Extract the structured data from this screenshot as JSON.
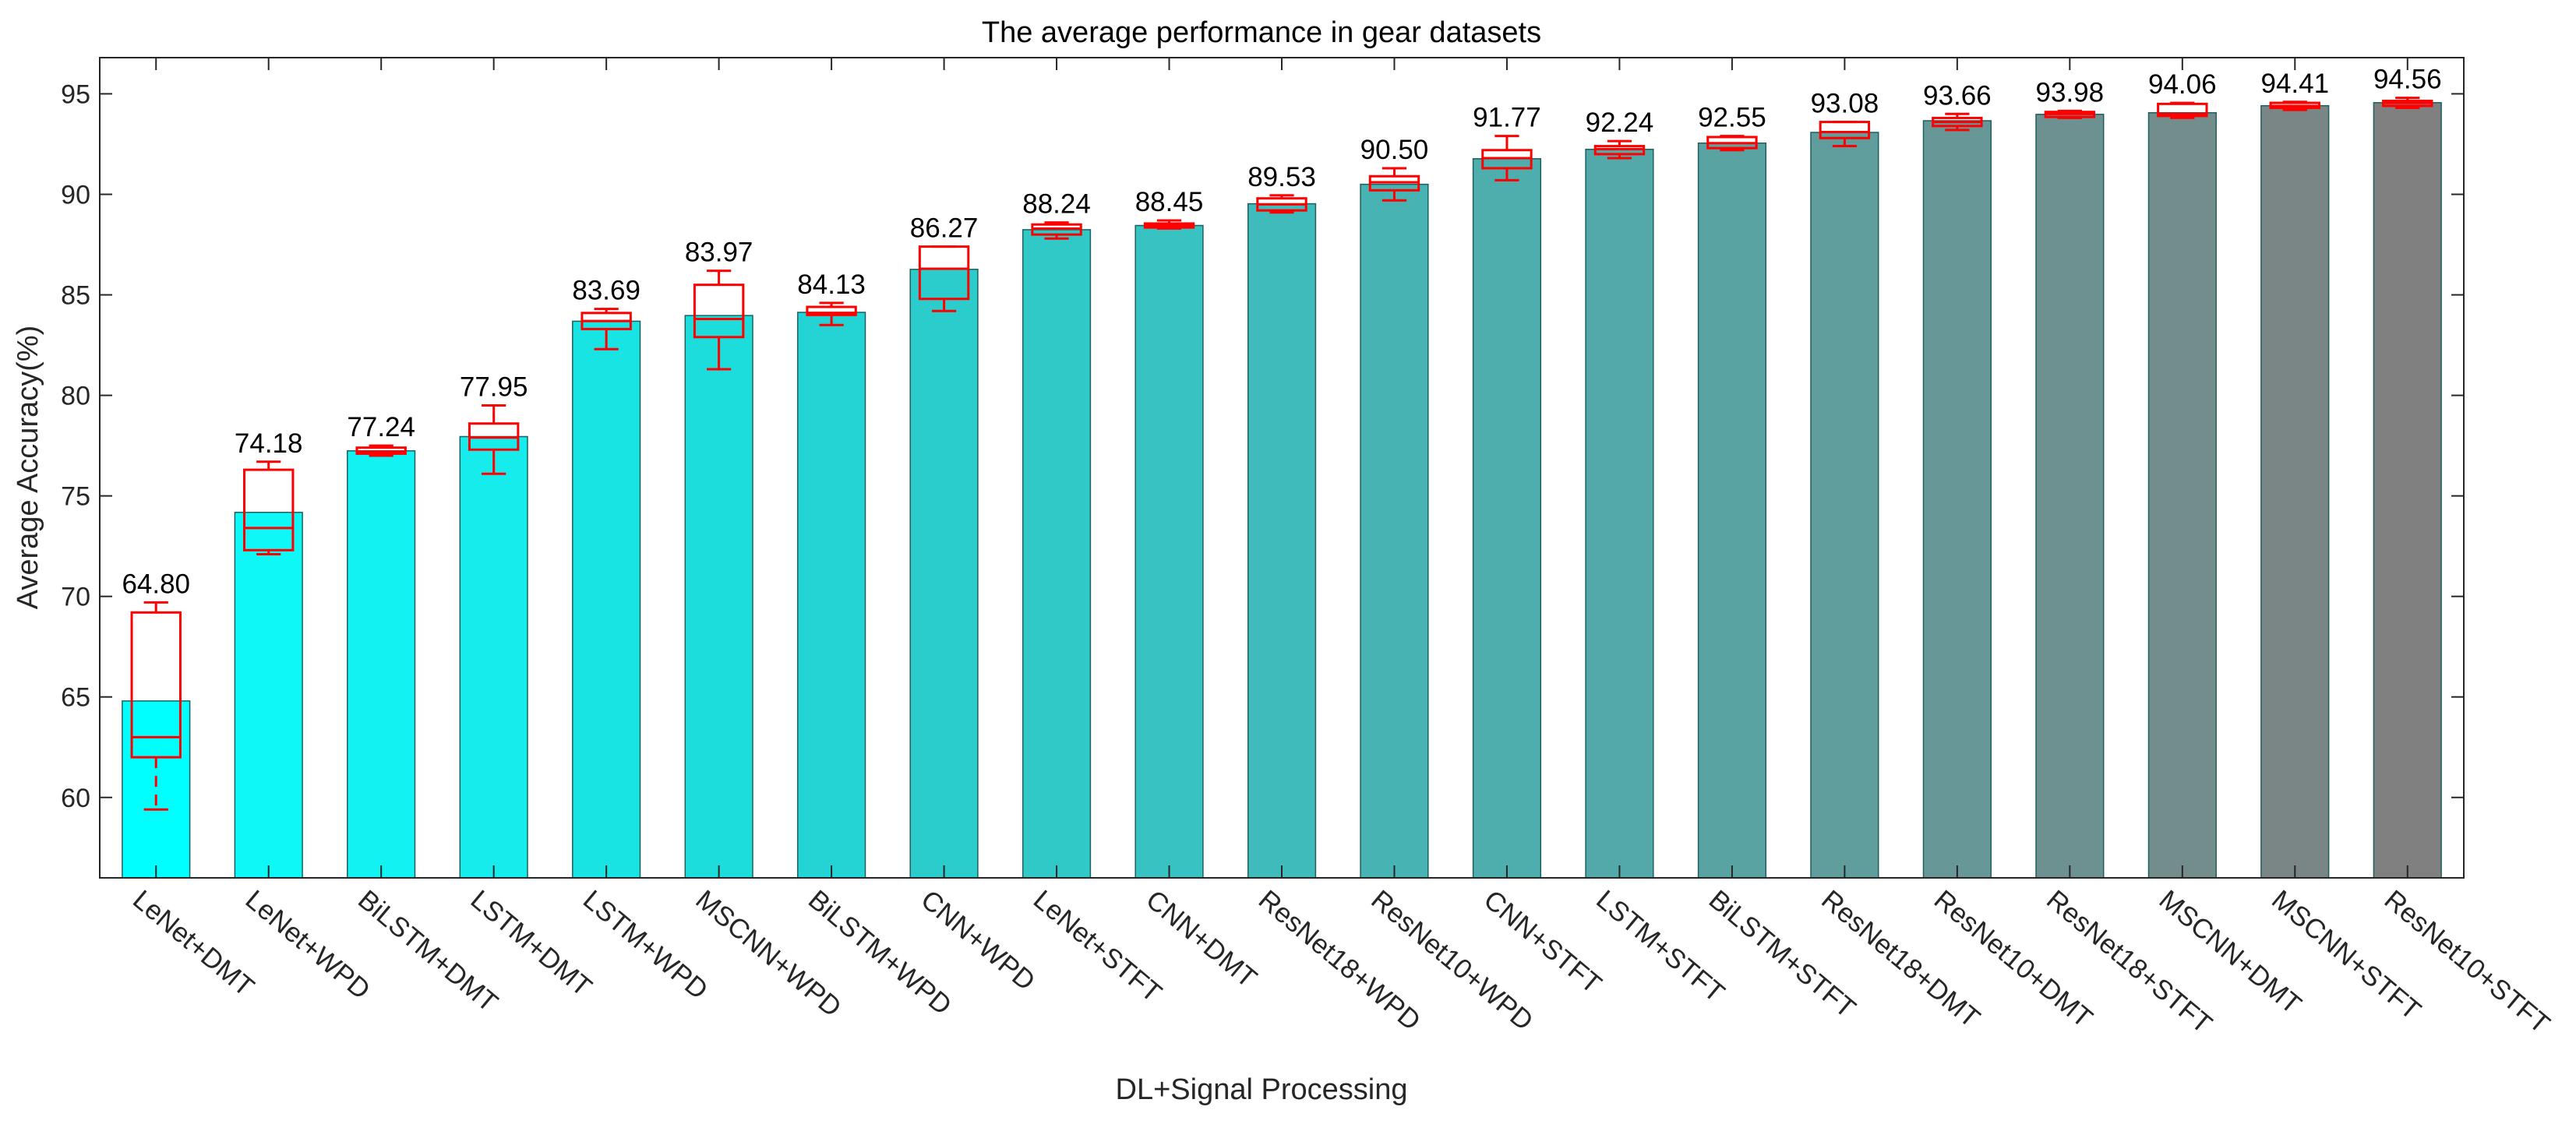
{
  "chart_data": {
    "type": "bar",
    "title": "The average performance in gear datasets",
    "xlabel": "DL+Signal Processing",
    "ylabel": "Average Accuracy(%)",
    "ylim": [
      56,
      96.8
    ],
    "yticks": [
      60,
      65,
      70,
      75,
      80,
      85,
      90,
      95
    ],
    "grid": false,
    "categories": [
      "LeNet+DMT",
      "LeNet+WPD",
      "BiLSTM+DMT",
      "LSTM+DMT",
      "LSTM+WPD",
      "MSCNN+WPD",
      "BiLSTM+WPD",
      "CNN+WPD",
      "LeNet+STFT",
      "CNN+DMT",
      "ResNet18+WPD",
      "ResNet10+WPD",
      "CNN+STFT",
      "LSTM+STFT",
      "BiLSTM+STFT",
      "ResNet18+DMT",
      "ResNet10+DMT",
      "ResNet18+STFT",
      "MSCNN+DMT",
      "MSCNN+STFT",
      "ResNet10+STFT"
    ],
    "values": [
      64.8,
      74.18,
      77.24,
      77.95,
      83.69,
      83.97,
      84.13,
      86.27,
      88.24,
      88.45,
      89.53,
      90.5,
      91.77,
      92.24,
      92.55,
      93.08,
      93.66,
      93.98,
      94.06,
      94.41,
      94.56
    ],
    "value_labels": [
      "64.80",
      "74.18",
      "77.24",
      "77.95",
      "83.69",
      "83.97",
      "84.13",
      "86.27",
      "88.24",
      "88.45",
      "89.53",
      "90.50",
      "91.77",
      "92.24",
      "92.55",
      "93.08",
      "93.66",
      "93.98",
      "94.06",
      "94.41",
      "94.56"
    ],
    "bar_colors": [
      "#00ffff",
      "#0ef8f8",
      "#12f2f2",
      "#16ecec",
      "#19e4e4",
      "#1ddcdc",
      "#24d4d4",
      "#2acccc",
      "#31c8c8",
      "#38c2c2",
      "#40bbbb",
      "#47b3b3",
      "#4eadad",
      "#53a9a9",
      "#5aa3a3",
      "#609d9d",
      "#679797",
      "#6d9191",
      "#738c8c",
      "#7a8585",
      "#808080"
    ],
    "box_color": "#ff0000",
    "boxplots": [
      {
        "whisker_low": 59.4,
        "q1": 62.0,
        "median": 63.0,
        "q3": 69.2,
        "whisker_high": 69.7
      },
      {
        "whisker_low": 72.1,
        "q1": 72.3,
        "median": 73.4,
        "q3": 76.3,
        "whisker_high": 76.7
      },
      {
        "whisker_low": 77.0,
        "q1": 77.1,
        "median": 77.2,
        "q3": 77.4,
        "whisker_high": 77.5
      },
      {
        "whisker_low": 76.1,
        "q1": 77.3,
        "median": 77.9,
        "q3": 78.6,
        "whisker_high": 79.5
      },
      {
        "whisker_low": 82.3,
        "q1": 83.3,
        "median": 83.7,
        "q3": 84.1,
        "whisker_high": 84.3
      },
      {
        "whisker_low": 81.3,
        "q1": 82.9,
        "median": 83.8,
        "q3": 85.5,
        "whisker_high": 86.2
      },
      {
        "whisker_low": 83.5,
        "q1": 84.0,
        "median": 84.1,
        "q3": 84.4,
        "whisker_high": 84.6
      },
      {
        "whisker_low": 84.2,
        "q1": 84.8,
        "median": 86.3,
        "q3": 87.4,
        "whisker_high": 87.4
      },
      {
        "whisker_low": 87.8,
        "q1": 88.0,
        "median": 88.3,
        "q3": 88.5,
        "whisker_high": 88.6
      },
      {
        "whisker_low": 88.3,
        "q1": 88.35,
        "median": 88.45,
        "q3": 88.55,
        "whisker_high": 88.7
      },
      {
        "whisker_low": 89.1,
        "q1": 89.2,
        "median": 89.5,
        "q3": 89.8,
        "whisker_high": 89.95
      },
      {
        "whisker_low": 89.7,
        "q1": 90.2,
        "median": 90.6,
        "q3": 90.9,
        "whisker_high": 91.3
      },
      {
        "whisker_low": 90.7,
        "q1": 91.3,
        "median": 91.8,
        "q3": 92.2,
        "whisker_high": 92.9
      },
      {
        "whisker_low": 91.8,
        "q1": 92.0,
        "median": 92.25,
        "q3": 92.4,
        "whisker_high": 92.65
      },
      {
        "whisker_low": 92.2,
        "q1": 92.3,
        "median": 92.55,
        "q3": 92.85,
        "whisker_high": 92.9
      },
      {
        "whisker_low": 92.4,
        "q1": 92.8,
        "median": 93.1,
        "q3": 93.6,
        "whisker_high": 93.6
      },
      {
        "whisker_low": 93.2,
        "q1": 93.4,
        "median": 93.6,
        "q3": 93.8,
        "whisker_high": 94.0
      },
      {
        "whisker_low": 93.8,
        "q1": 93.85,
        "median": 94.0,
        "q3": 94.1,
        "whisker_high": 94.15
      },
      {
        "whisker_low": 93.8,
        "q1": 93.9,
        "median": 94.0,
        "q3": 94.5,
        "whisker_high": 94.55
      },
      {
        "whisker_low": 94.2,
        "q1": 94.3,
        "median": 94.4,
        "q3": 94.55,
        "whisker_high": 94.6
      },
      {
        "whisker_low": 94.3,
        "q1": 94.4,
        "median": 94.55,
        "q3": 94.65,
        "whisker_high": 94.8
      }
    ]
  }
}
